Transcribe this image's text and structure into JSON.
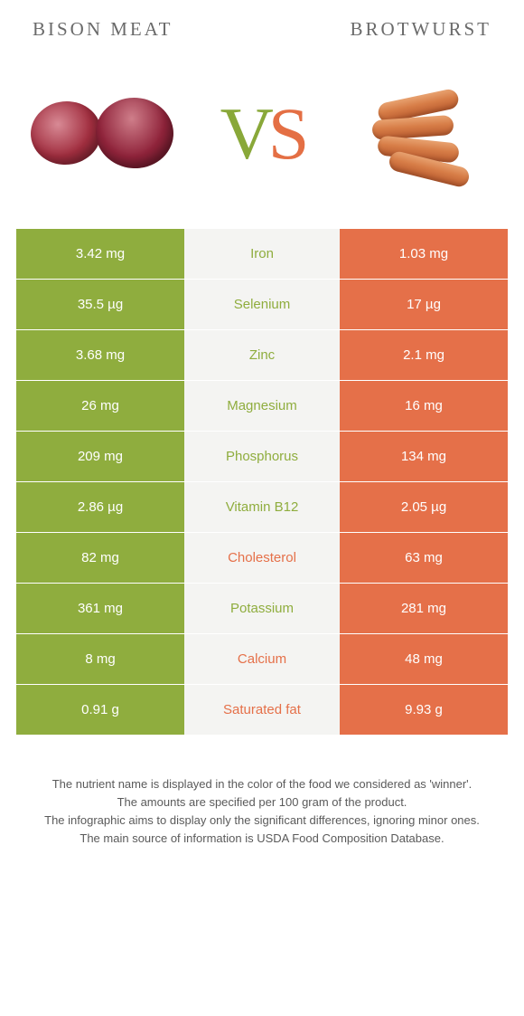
{
  "colors": {
    "green": "#8fad3e",
    "orange": "#e57049",
    "mid_bg": "#f4f4f2"
  },
  "header": {
    "left_title": "Bison meat",
    "right_title": "Brotwurst"
  },
  "rows": [
    {
      "nutrient": "Iron",
      "left": "3.42 mg",
      "right": "1.03 mg",
      "winner": "left"
    },
    {
      "nutrient": "Selenium",
      "left": "35.5 µg",
      "right": "17 µg",
      "winner": "left"
    },
    {
      "nutrient": "Zinc",
      "left": "3.68 mg",
      "right": "2.1 mg",
      "winner": "left"
    },
    {
      "nutrient": "Magnesium",
      "left": "26 mg",
      "right": "16 mg",
      "winner": "left"
    },
    {
      "nutrient": "Phosphorus",
      "left": "209 mg",
      "right": "134 mg",
      "winner": "left"
    },
    {
      "nutrient": "Vitamin B12",
      "left": "2.86 µg",
      "right": "2.05 µg",
      "winner": "left"
    },
    {
      "nutrient": "Cholesterol",
      "left": "82 mg",
      "right": "63 mg",
      "winner": "right"
    },
    {
      "nutrient": "Potassium",
      "left": "361 mg",
      "right": "281 mg",
      "winner": "left"
    },
    {
      "nutrient": "Calcium",
      "left": "8 mg",
      "right": "48 mg",
      "winner": "right"
    },
    {
      "nutrient": "Saturated fat",
      "left": "0.91 g",
      "right": "9.93 g",
      "winner": "right"
    }
  ],
  "footnotes": [
    "The nutrient name is displayed in the color of the food we considered as 'winner'.",
    "The amounts are specified per 100 gram of the product.",
    "The infographic aims to display only the significant differences, ignoring minor ones.",
    "The main source of information is USDA Food Composition Database."
  ]
}
